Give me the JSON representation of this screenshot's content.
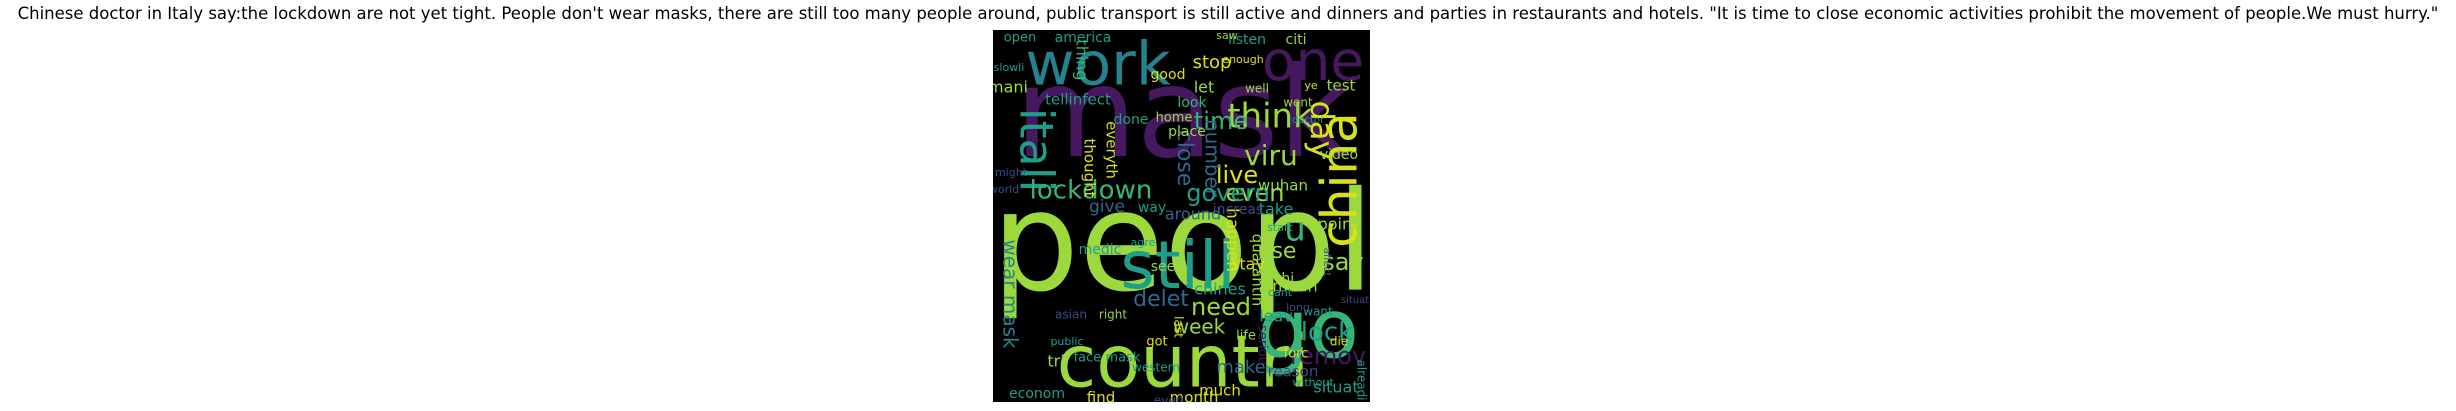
{
  "caption": "Chinese doctor in Italy say:the lockdown are not yet tight. People don't wear masks, there are still too many people around, public transport is still active and dinners and parties in restaurants and hotels. \"It is time to close economic activities prohibit the movement of people.We must hurry.\"",
  "colors": {
    "background": "#000000",
    "purple": "#46185f",
    "lime": "#9bd93c",
    "green": "#35b779",
    "teal": "#1f9e89",
    "bluegreen": "#26828e",
    "blue": "#31688e",
    "indigo": "#3e4a89",
    "yellow": "#d8e219"
  },
  "words": [
    {
      "text": "peopl",
      "color": "lime"
    },
    {
      "text": "mask",
      "color": "purple"
    },
    {
      "text": "countri",
      "color": "lime"
    },
    {
      "text": "go",
      "color": "green"
    },
    {
      "text": "still",
      "color": "teal"
    },
    {
      "text": "work",
      "color": "bluegreen"
    },
    {
      "text": "one",
      "color": "purple"
    },
    {
      "text": "china",
      "color": "yellow"
    },
    {
      "text": "itali",
      "color": "teal"
    },
    {
      "text": "lockdown",
      "color": "green"
    },
    {
      "text": "think",
      "color": "lime"
    },
    {
      "text": "viru",
      "color": "lime"
    },
    {
      "text": "day",
      "color": "yellow"
    },
    {
      "text": "live",
      "color": "yellow"
    },
    {
      "text": "time",
      "color": "green"
    },
    {
      "text": "even",
      "color": "lime"
    },
    {
      "text": "need",
      "color": "lime"
    },
    {
      "text": "say",
      "color": "lime"
    },
    {
      "text": "u",
      "color": "green"
    },
    {
      "text": "lock",
      "color": "teal"
    },
    {
      "text": "remov",
      "color": "purple"
    },
    {
      "text": "wear mask",
      "color": "bluegreen"
    },
    {
      "text": "close",
      "color": "blue"
    },
    {
      "text": "number",
      "color": "blue"
    },
    {
      "text": "govern",
      "color": "teal"
    },
    {
      "text": "delet",
      "color": "blue"
    },
    {
      "text": "wuhan",
      "color": "lime"
    },
    {
      "text": "week",
      "color": "lime"
    },
    {
      "text": "use",
      "color": "lime"
    },
    {
      "text": "stay",
      "color": "yellow"
    },
    {
      "text": "test",
      "color": "lime"
    },
    {
      "text": "video",
      "color": "lime"
    },
    {
      "text": "make",
      "color": "blue"
    },
    {
      "text": "stop",
      "color": "yellow"
    },
    {
      "text": "let",
      "color": "lime"
    },
    {
      "text": "place",
      "color": "lime"
    },
    {
      "text": "take",
      "color": "teal"
    },
    {
      "text": "happen",
      "color": "yellow"
    },
    {
      "text": "chines",
      "color": "teal"
    },
    {
      "text": "quarantin",
      "color": "lime"
    },
    {
      "text": "mean",
      "color": "lime"
    },
    {
      "text": "month",
      "color": "yellow"
    },
    {
      "text": "reason",
      "color": "indigo"
    },
    {
      "text": "situat",
      "color": "teal"
    },
    {
      "text": "much",
      "color": "yellow"
    },
    {
      "text": "find",
      "color": "yellow"
    },
    {
      "text": "econom",
      "color": "teal"
    },
    {
      "text": "tri",
      "color": "lime"
    },
    {
      "text": "america",
      "color": "teal"
    },
    {
      "text": "listen",
      "color": "teal"
    },
    {
      "text": "citi",
      "color": "lime"
    },
    {
      "text": "good",
      "color": "yellow"
    },
    {
      "text": "look",
      "color": "green"
    },
    {
      "text": "went",
      "color": "lime"
    },
    {
      "text": "done",
      "color": "teal"
    },
    {
      "text": "home",
      "color": "lime"
    },
    {
      "text": "thought",
      "color": "yellow"
    },
    {
      "text": "everyth",
      "color": "yellow"
    },
    {
      "text": "world",
      "color": "indigo"
    },
    {
      "text": "might",
      "color": "indigo"
    },
    {
      "text": "mani",
      "color": "lime"
    },
    {
      "text": "thing",
      "color": "green"
    },
    {
      "text": "tellinfect",
      "color": "teal"
    },
    {
      "text": "around",
      "color": "blue"
    },
    {
      "text": "increas",
      "color": "indigo"
    },
    {
      "text": "give",
      "color": "blue"
    },
    {
      "text": "way",
      "color": "teal"
    },
    {
      "text": "see",
      "color": "lime"
    },
    {
      "text": "medic",
      "color": "teal"
    },
    {
      "text": "agre",
      "color": "teal"
    },
    {
      "text": "last",
      "color": "yellow"
    },
    {
      "text": "got",
      "color": "yellow"
    },
    {
      "text": "right",
      "color": "lime"
    },
    {
      "text": "western",
      "color": "teal"
    },
    {
      "text": "face mask",
      "color": "teal"
    },
    {
      "text": "public",
      "color": "teal"
    },
    {
      "text": "asian",
      "color": "indigo"
    },
    {
      "text": "open",
      "color": "teal"
    },
    {
      "text": "enough",
      "color": "yellow"
    },
    {
      "text": "saw",
      "color": "lime"
    },
    {
      "text": "well",
      "color": "lime"
    },
    {
      "text": "ye",
      "color": "yellow"
    },
    {
      "text": "doctor",
      "color": "teal"
    },
    {
      "text": "point",
      "color": "lime"
    },
    {
      "text": "thi",
      "color": "lime"
    },
    {
      "text": "start",
      "color": "teal"
    },
    {
      "text": "cant",
      "color": "teal"
    },
    {
      "text": "leav",
      "color": "teal"
    },
    {
      "text": "life",
      "color": "lime"
    },
    {
      "text": "seriou",
      "color": "purple"
    },
    {
      "text": "want",
      "color": "teal"
    },
    {
      "text": "die",
      "color": "yellow"
    },
    {
      "text": "forc",
      "color": "yellow"
    },
    {
      "text": "without",
      "color": "teal"
    },
    {
      "text": "alreadi",
      "color": "teal"
    },
    {
      "text": "everi",
      "color": "indigo"
    },
    {
      "text": "slowli",
      "color": "teal"
    },
    {
      "text": "affect",
      "color": "indigo"
    },
    {
      "text": "long",
      "color": "indigo"
    },
    {
      "text": "situat",
      "color": "indigo"
    }
  ]
}
